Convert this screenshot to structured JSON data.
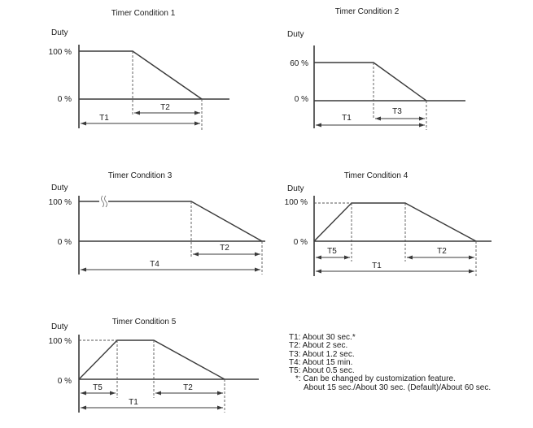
{
  "conditions": [
    {
      "title": "Timer Condition 1",
      "ylabel": "Duty",
      "high_label": "100 %",
      "zero_label": "0 %",
      "segments": [
        "T1",
        "T2"
      ]
    },
    {
      "title": "Timer Condition 2",
      "ylabel": "Duty",
      "high_label": "60 %",
      "zero_label": "0 %",
      "segments": [
        "T1",
        "T3"
      ]
    },
    {
      "title": "Timer Condition 3",
      "ylabel": "Duty",
      "high_label": "100 %",
      "zero_label": "0 %",
      "segments": [
        "T2",
        "T4"
      ]
    },
    {
      "title": "Timer Condition 4",
      "ylabel": "Duty",
      "high_label": "100 %",
      "zero_label": "0 %",
      "segments": [
        "T5",
        "T2",
        "T1"
      ]
    },
    {
      "title": "Timer Condition 5",
      "ylabel": "Duty",
      "high_label": "100 %",
      "zero_label": "0 %",
      "segments": [
        "T5",
        "T2",
        "T1"
      ]
    }
  ],
  "legend": {
    "t1": "T1: About 30 sec.*",
    "t2": "T2: About 2 sec.",
    "t3": "T3: About 1.2 sec.",
    "t4": "T4: About 15 min.",
    "t5": "T5: About 0.5 sec.",
    "note": "*: Can be changed by customization feature.",
    "note_detail": "About 15 sec./About 30 sec. (Default)/About 60 sec."
  }
}
